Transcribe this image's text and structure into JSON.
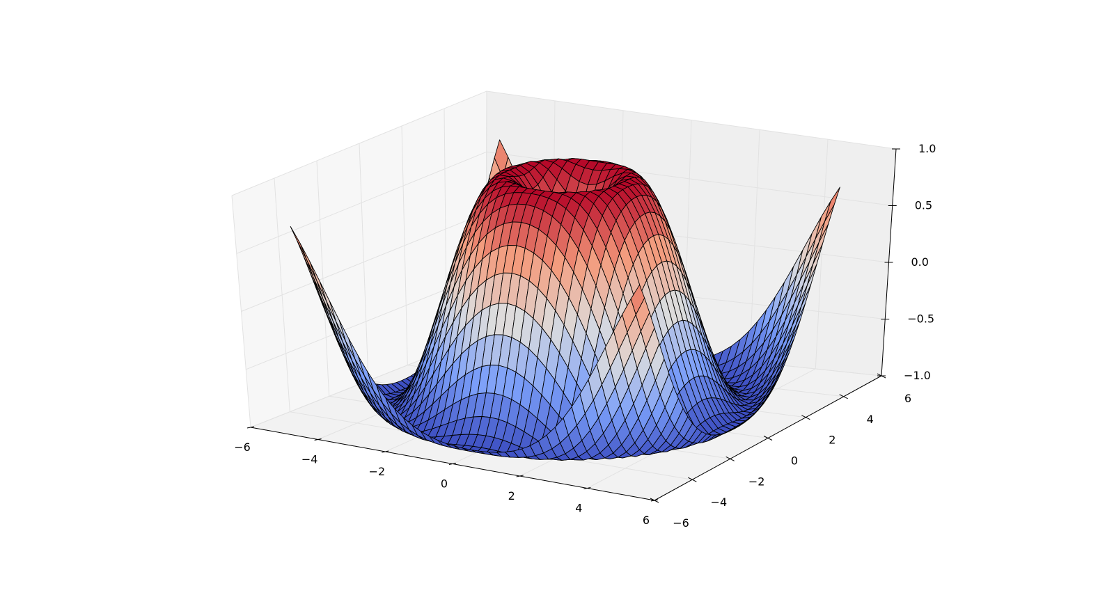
{
  "chart_data": {
    "type": "surface3d",
    "title": "",
    "function": "z = sin(sqrt(x^2 + y^2))",
    "grid": true,
    "colormap": "coolwarm",
    "colormap_low": "#3b4cc0",
    "colormap_mid": "#dddddd",
    "colormap_high": "#b40426",
    "edge_color": "#000000",
    "x": {
      "label": "",
      "range": [
        -6,
        6
      ],
      "ticks": [
        -6,
        -4,
        -2,
        0,
        2,
        4,
        6
      ],
      "tick_labels": [
        "−6",
        "−4",
        "−2",
        "0",
        "2",
        "4",
        "6"
      ]
    },
    "y": {
      "label": "",
      "range": [
        -6,
        6
      ],
      "ticks": [
        -6,
        -4,
        -2,
        0,
        2,
        4,
        6
      ],
      "tick_labels": [
        "−6",
        "−4",
        "−2",
        "0",
        "2",
        "4",
        "6"
      ]
    },
    "z": {
      "label": "",
      "range": [
        -1.0,
        1.0
      ],
      "ticks": [
        -1.0,
        -0.5,
        0.0,
        0.5,
        1.0
      ],
      "tick_labels": [
        "−1.0",
        "−0.5",
        "0.0",
        "0.5",
        "1.0"
      ]
    },
    "surface": {
      "x_range": [
        -5,
        5
      ],
      "y_range": [
        -5,
        5
      ],
      "grid_points": 40
    }
  }
}
